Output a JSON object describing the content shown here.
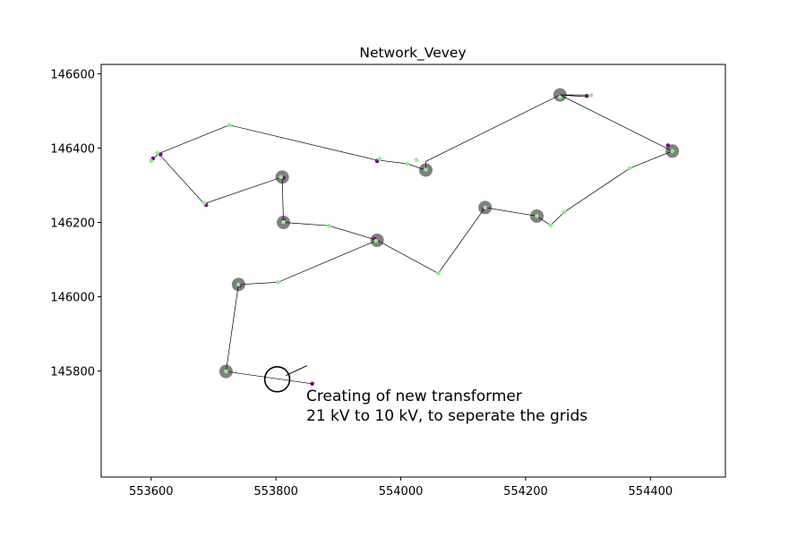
{
  "chart_data": {
    "type": "scatter",
    "title": "Network_Vevey",
    "xlabel": "",
    "ylabel": "",
    "xlim": [
      553520,
      554520
    ],
    "ylim": [
      145515,
      146625
    ],
    "xticks": [
      553600,
      553800,
      554000,
      554200,
      554400
    ],
    "yticks": [
      145800,
      146000,
      146200,
      146400,
      146600
    ],
    "grid": false,
    "colors": {
      "line": "#000000",
      "node_green": "#90ee90",
      "node_purple": "#800080",
      "transformer_gray": "#808080"
    },
    "lines": [
      [
        [
          553612,
          146385
        ],
        [
          553725,
          146462
        ],
        [
          553960,
          146368
        ],
        [
          554010,
          146358
        ],
        [
          554040,
          146341
        ]
      ],
      [
        [
          553612,
          146385
        ],
        [
          553685,
          146250
        ],
        [
          553810,
          146322
        ],
        [
          553812,
          146200
        ],
        [
          553885,
          146191
        ],
        [
          553962,
          146152
        ],
        [
          554060,
          146063
        ],
        [
          554135,
          146240
        ],
        [
          554218,
          146217
        ],
        [
          554240,
          146192
        ],
        [
          554262,
          146228
        ],
        [
          554367,
          146346
        ],
        [
          554435,
          146392
        ],
        [
          554255,
          146543
        ],
        [
          554040,
          146364
        ],
        [
          554040,
          146341
        ]
      ],
      [
        [
          553962,
          146152
        ],
        [
          553803,
          146039
        ],
        [
          553740,
          146033
        ],
        [
          553720,
          145799
        ],
        [
          553858,
          145766
        ]
      ],
      [
        [
          553612,
          146385
        ],
        [
          553600,
          146365
        ]
      ],
      [
        [
          554255,
          146543
        ],
        [
          554300,
          146538
        ]
      ],
      [
        [
          554255,
          146543
        ],
        [
          554300,
          146543
        ]
      ]
    ],
    "transformers": [
      [
        553810,
        146322
      ],
      [
        553812,
        146200
      ],
      [
        553962,
        146152
      ],
      [
        554040,
        146341
      ],
      [
        554135,
        146240
      ],
      [
        554218,
        146217
      ],
      [
        554255,
        146543
      ],
      [
        554435,
        146392
      ],
      [
        553740,
        146033
      ],
      [
        553720,
        145799
      ]
    ],
    "green_nodes": [
      [
        553600,
        146365
      ],
      [
        553610,
        146387
      ],
      [
        553685,
        146252
      ],
      [
        553725,
        146462
      ],
      [
        553808,
        146322
      ],
      [
        553812,
        146201
      ],
      [
        553885,
        146191
      ],
      [
        553960,
        146150
      ],
      [
        553966,
        146371
      ],
      [
        554010,
        146357
      ],
      [
        554025,
        146368
      ],
      [
        554040,
        146342
      ],
      [
        554060,
        146063
      ],
      [
        554135,
        146240
      ],
      [
        554218,
        146217
      ],
      [
        554240,
        146192
      ],
      [
        554262,
        146228
      ],
      [
        554367,
        146346
      ],
      [
        554435,
        146392
      ],
      [
        554255,
        146537
      ],
      [
        554305,
        146542
      ],
      [
        553803,
        146039
      ],
      [
        553740,
        146033
      ],
      [
        553720,
        145799
      ]
    ],
    "purple_nodes": [
      [
        553603,
        146372
      ],
      [
        553615,
        146383
      ],
      [
        553688,
        146247
      ],
      [
        553812,
        146320
      ],
      [
        553812,
        146206
      ],
      [
        553958,
        146155
      ],
      [
        553962,
        146365
      ],
      [
        554133,
        146237
      ],
      [
        554298,
        146540
      ],
      [
        554428,
        146407
      ],
      [
        553742,
        146031
      ],
      [
        553858,
        145766
      ]
    ],
    "annotation": {
      "lines": [
        "Creating of new transformer",
        "21 kV to 10 kV, to seperate the grids"
      ],
      "circle_center": [
        553802,
        145778
      ],
      "circle_radius_x": 20,
      "leader_target": [
        553850,
        145815
      ]
    }
  }
}
